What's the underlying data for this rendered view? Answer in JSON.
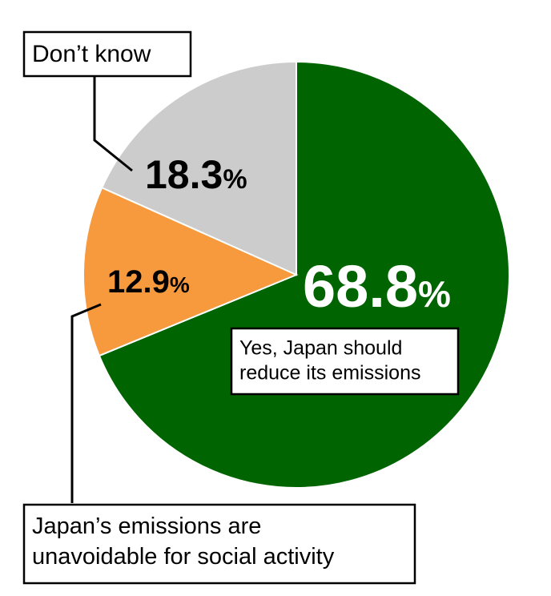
{
  "chart_data": {
    "type": "pie",
    "slices": [
      {
        "label": "Yes, Japan should reduce its emissions",
        "label_lines": [
          "Yes, Japan should",
          "reduce its emissions"
        ],
        "value": 68.8,
        "display": "68.8",
        "color": "#006400"
      },
      {
        "label": "Japan’s emissions are unavoidable for social activity",
        "label_lines": [
          "Japan’s emissions are",
          "unavoidable for social activity"
        ],
        "value": 12.9,
        "display": "12.9",
        "color": "#f79a3e"
      },
      {
        "label": "Don’t know",
        "label_lines": [
          "Don’t know"
        ],
        "value": 18.3,
        "display": "18.3",
        "color": "#cccccc"
      }
    ],
    "unit": "%",
    "start_angle_deg": 0,
    "direction": "clockwise",
    "legend": "callout boxes"
  }
}
